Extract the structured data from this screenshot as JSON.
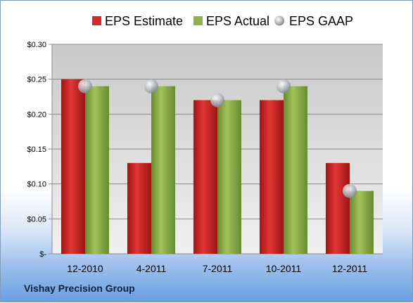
{
  "chart_data": {
    "type": "bar",
    "categories": [
      "12-2010",
      "4-2011",
      "7-2011",
      "10-2011",
      "12-2011"
    ],
    "series": [
      {
        "name": "EPS Estimate",
        "kind": "bar",
        "color": "#d42a2a",
        "values": [
          0.25,
          0.13,
          0.22,
          0.22,
          0.13
        ]
      },
      {
        "name": "EPS Actual",
        "kind": "bar",
        "color": "#8fb04a",
        "values": [
          0.24,
          0.24,
          0.22,
          0.24,
          0.09
        ]
      },
      {
        "name": "EPS GAAP",
        "kind": "marker",
        "color": "#b8bcc4",
        "values": [
          0.24,
          0.24,
          0.22,
          0.24,
          0.09
        ]
      }
    ],
    "ylim": [
      0,
      0.3
    ],
    "yticks": [
      0,
      0.05,
      0.1,
      0.15,
      0.2,
      0.25,
      0.3
    ],
    "ytick_labels": [
      "$-",
      "$0.05",
      "$0.10",
      "$0.15",
      "$0.20",
      "$0.25",
      "$0.30"
    ],
    "grid": true,
    "legend_position": "top"
  },
  "company": "Vishay Precision Group"
}
